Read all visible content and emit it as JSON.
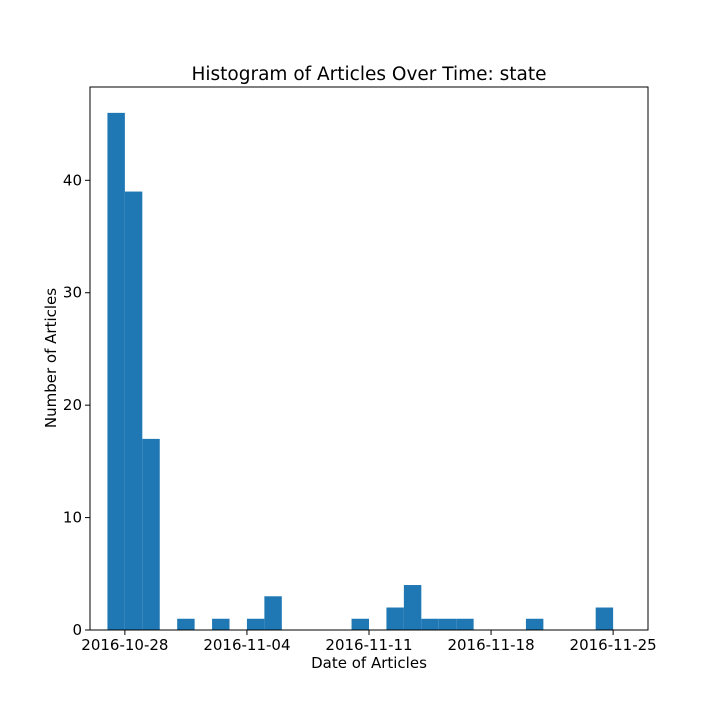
{
  "chart_data": {
    "type": "bar",
    "title": "Histogram of Articles Over Time: state",
    "xlabel": "Date of Articles",
    "ylabel": "Number of Articles",
    "x_ticks": [
      "2016-10-28",
      "2016-11-04",
      "2016-11-11",
      "2016-11-18",
      "2016-11-25"
    ],
    "y_ticks": [
      "0",
      "10",
      "20",
      "30",
      "40"
    ],
    "ylim": [
      0,
      48.3
    ],
    "xlim": [
      "2016-10-26",
      "2016-11-27"
    ],
    "grid": false,
    "bars": [
      {
        "start": "2016-10-27",
        "end": "2016-10-28",
        "value": 46
      },
      {
        "start": "2016-10-28",
        "end": "2016-10-29",
        "value": 39
      },
      {
        "start": "2016-10-29",
        "end": "2016-10-30",
        "value": 17
      },
      {
        "start": "2016-10-31",
        "end": "2016-11-01",
        "value": 1
      },
      {
        "start": "2016-11-02",
        "end": "2016-11-03",
        "value": 1
      },
      {
        "start": "2016-11-04",
        "end": "2016-11-05",
        "value": 1
      },
      {
        "start": "2016-11-05",
        "end": "2016-11-06",
        "value": 3
      },
      {
        "start": "2016-11-10",
        "end": "2016-11-11",
        "value": 1
      },
      {
        "start": "2016-11-12",
        "end": "2016-11-13",
        "value": 2
      },
      {
        "start": "2016-11-13",
        "end": "2016-11-14",
        "value": 4
      },
      {
        "start": "2016-11-14",
        "end": "2016-11-15",
        "value": 1
      },
      {
        "start": "2016-11-15",
        "end": "2016-11-16",
        "value": 1
      },
      {
        "start": "2016-11-16",
        "end": "2016-11-17",
        "value": 1
      },
      {
        "start": "2016-11-20",
        "end": "2016-11-21",
        "value": 1
      },
      {
        "start": "2016-11-24",
        "end": "2016-11-25",
        "value": 2
      }
    ],
    "bar_color": "#1f77b4"
  }
}
